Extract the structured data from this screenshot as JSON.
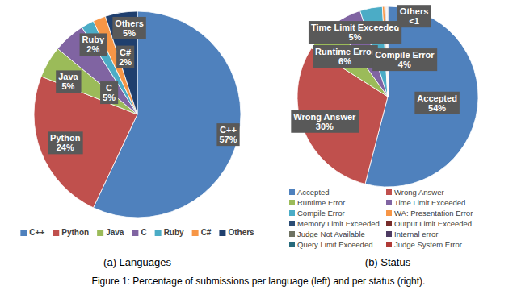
{
  "chart_data": [
    {
      "type": "pie",
      "title": "(a) Languages",
      "categories": [
        "C++",
        "Python",
        "Java",
        "C",
        "Ruby",
        "C#",
        "Others"
      ],
      "values": [
        57,
        24,
        5,
        5,
        2,
        2,
        5
      ],
      "value_labels": [
        "57%",
        "24%",
        "5%",
        "5%",
        "2%",
        "2%",
        "5%"
      ],
      "colors": [
        "#4f81bd",
        "#c0504d",
        "#9bbb59",
        "#8064a2",
        "#4bacc6",
        "#f79646",
        "#1f3f6e"
      ],
      "data_labels": true,
      "legend": "bottom"
    },
    {
      "type": "pie",
      "title": "(b) Status",
      "categories": [
        "Accepted",
        "Wrong Answer",
        "Runtime Error",
        "Time Limit Exceeded",
        "Compile Error",
        "WA: Presentation Error",
        "Memory Limit Exceeded",
        "Output Limit Exceeded",
        "Judge Not Available",
        "Internal error",
        "Query Limit Exceeded",
        "Judge System Error"
      ],
      "values": [
        54,
        30,
        6,
        5,
        4,
        0.4,
        0.2,
        0.1,
        0.1,
        0.05,
        0.05,
        0.05
      ],
      "value_labels": [
        "54%",
        "30%",
        "6%",
        "5%",
        "4%",
        null,
        null,
        null,
        null,
        null,
        null,
        null
      ],
      "colors": [
        "#4f81bd",
        "#c0504d",
        "#9bbb59",
        "#8064a2",
        "#4bacc6",
        "#f79646",
        "#2c4d75",
        "#772c2a",
        "#6e7262",
        "#4d3b62",
        "#276a7c",
        "#b03a36"
      ],
      "data_labels": true,
      "legend": "bottom",
      "annotation": {
        "text": "Others",
        "label": "<1"
      }
    }
  ],
  "caption": "Figure 1: Percentage of submissions per language (left) and per status (right)."
}
